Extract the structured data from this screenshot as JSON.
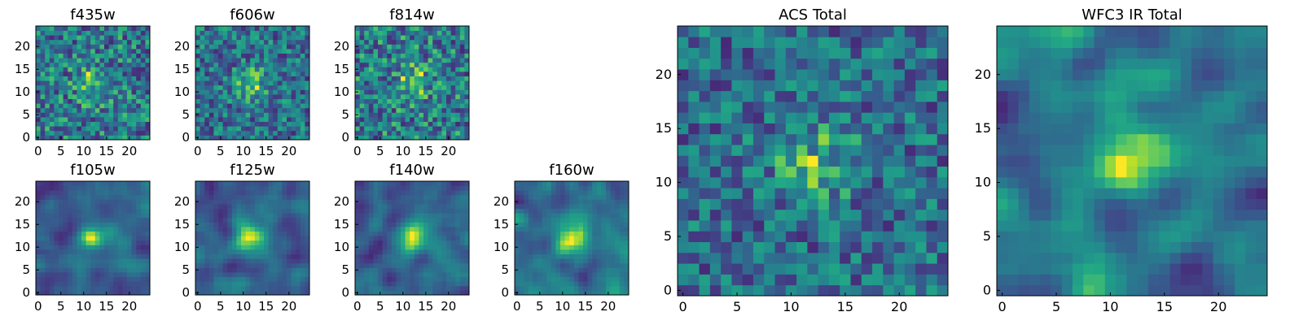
{
  "colormap": "viridis",
  "colors": {
    "frame": "#000000",
    "text": "#000000",
    "viridis_low": "#440154",
    "viridis_mid": "#21918c",
    "viridis_high": "#fde725"
  },
  "chart_data": [
    {
      "type": "heatmap",
      "title": "f435w",
      "grid_size": 25,
      "xlim": [
        0,
        24
      ],
      "ylim": [
        0,
        24
      ],
      "xticks": [
        0,
        5,
        10,
        15,
        20
      ],
      "yticks": [
        0,
        5,
        10,
        15,
        20
      ],
      "pattern": "noise"
    },
    {
      "type": "heatmap",
      "title": "f606w",
      "grid_size": 25,
      "xlim": [
        0,
        24
      ],
      "ylim": [
        0,
        24
      ],
      "xticks": [
        0,
        5,
        10,
        15,
        20
      ],
      "yticks": [
        0,
        5,
        10,
        15,
        20
      ],
      "pattern": "noise"
    },
    {
      "type": "heatmap",
      "title": "f814w",
      "grid_size": 25,
      "xlim": [
        0,
        24
      ],
      "ylim": [
        0,
        24
      ],
      "xticks": [
        0,
        5,
        10,
        15,
        20
      ],
      "yticks": [
        0,
        5,
        10,
        15,
        20
      ],
      "pattern": "noise"
    },
    {
      "type": "heatmap",
      "title": "f105w",
      "grid_size": 25,
      "xlim": [
        0,
        24
      ],
      "ylim": [
        0,
        24
      ],
      "xticks": [
        0,
        5,
        10,
        15,
        20
      ],
      "yticks": [
        0,
        5,
        10,
        15,
        20
      ],
      "pattern": "smooth"
    },
    {
      "type": "heatmap",
      "title": "f125w",
      "grid_size": 25,
      "xlim": [
        0,
        24
      ],
      "ylim": [
        0,
        24
      ],
      "xticks": [
        0,
        5,
        10,
        15,
        20
      ],
      "yticks": [
        0,
        5,
        10,
        15,
        20
      ],
      "pattern": "smooth"
    },
    {
      "type": "heatmap",
      "title": "f140w",
      "grid_size": 25,
      "xlim": [
        0,
        24
      ],
      "ylim": [
        0,
        24
      ],
      "xticks": [
        0,
        5,
        10,
        15,
        20
      ],
      "yticks": [
        0,
        5,
        10,
        15,
        20
      ],
      "pattern": "smooth"
    },
    {
      "type": "heatmap",
      "title": "f160w",
      "grid_size": 25,
      "xlim": [
        0,
        24
      ],
      "ylim": [
        0,
        24
      ],
      "xticks": [
        0,
        5,
        10,
        15,
        20
      ],
      "yticks": [
        0,
        5,
        10,
        15,
        20
      ],
      "pattern": "smooth"
    },
    {
      "type": "heatmap",
      "title": "ACS Total",
      "grid_size": 25,
      "xlim": [
        0,
        24
      ],
      "ylim": [
        0,
        24
      ],
      "xticks": [
        0,
        5,
        10,
        15,
        20
      ],
      "yticks": [
        0,
        5,
        10,
        15,
        20
      ],
      "pattern": "noise"
    },
    {
      "type": "heatmap",
      "title": "WFC3 IR Total",
      "grid_size": 25,
      "xlim": [
        0,
        24
      ],
      "ylim": [
        0,
        24
      ],
      "xticks": [
        0,
        5,
        10,
        15,
        20
      ],
      "yticks": [
        0,
        5,
        10,
        15,
        20
      ],
      "pattern": "smooth"
    }
  ]
}
